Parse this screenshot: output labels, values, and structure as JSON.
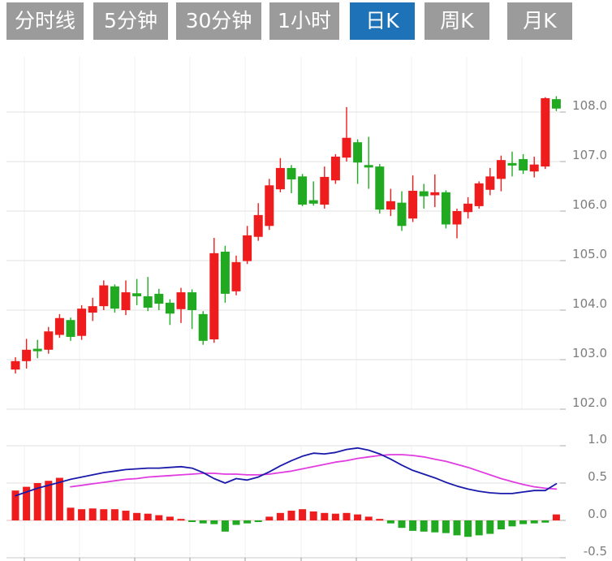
{
  "tabbar": {
    "tabs": [
      {
        "label": "分时线",
        "active": false
      },
      {
        "label": "5分钟",
        "active": false
      },
      {
        "label": "30分钟",
        "active": false
      },
      {
        "label": "1小时",
        "active": false
      },
      {
        "label": "日K",
        "active": true
      },
      {
        "label": "周K",
        "active": false
      },
      {
        "label": "月K",
        "active": false
      }
    ]
  },
  "colors": {
    "tab_bg": "#9b9b9b",
    "tab_active_bg": "#1e73b8",
    "tab_text": "#ffffff",
    "candle_up": "#ee1c1c",
    "candle_down": "#21aa21",
    "dif_line": "#1a1aaa",
    "dea_line": "#e03ce0",
    "grid": "#e2e2e2",
    "zero_line": "#e4bcbc",
    "axis_line": "#c8c8c8",
    "tick": "#aaaaaa",
    "axis_text": "#7d7d7d"
  },
  "chart_data": {
    "type": "candlestick",
    "panes": [
      "price",
      "macd-indicator"
    ],
    "convention": "red = close>=open (up), green = close<open (down)",
    "price_axis": {
      "labels": [
        "108.0",
        "107.0",
        "106.0",
        "105.0",
        "104.0",
        "103.0",
        "102.0"
      ],
      "values": [
        108.0,
        107.0,
        106.0,
        105.0,
        104.0,
        103.0,
        102.0
      ],
      "range": [
        101.8,
        108.6
      ]
    },
    "macd_axis": {
      "labels": [
        "1.0",
        "0.5",
        "0.0",
        "-0.5"
      ],
      "values": [
        1.0,
        0.5,
        0.0,
        -0.5
      ],
      "range": [
        -0.5,
        1.0
      ]
    },
    "candles": {
      "open": [
        102.8,
        102.97,
        103.22,
        103.2,
        103.5,
        103.8,
        103.48,
        103.95,
        104.08,
        104.48,
        104.0,
        104.34,
        104.28,
        104.33,
        104.15,
        104.02,
        104.36,
        103.92,
        103.41,
        105.18,
        104.38,
        104.99,
        105.48,
        105.7,
        106.44,
        106.87,
        106.7,
        106.22,
        106.13,
        106.62,
        107.08,
        107.39,
        106.93,
        106.9,
        106.03,
        106.17,
        105.85,
        106.4,
        106.32,
        106.38,
        105.73,
        105.98,
        106.1,
        106.43,
        106.65,
        106.97,
        107.05,
        106.8,
        106.9,
        108.26
      ],
      "close": [
        102.97,
        103.2,
        103.17,
        103.57,
        103.84,
        103.46,
        104.03,
        104.08,
        104.5,
        104.03,
        104.36,
        104.28,
        104.05,
        104.13,
        103.93,
        104.36,
        104.0,
        103.38,
        105.15,
        104.33,
        104.97,
        105.51,
        105.92,
        106.52,
        106.87,
        106.64,
        106.13,
        106.15,
        106.69,
        107.1,
        107.48,
        106.98,
        106.88,
        106.03,
        106.2,
        105.7,
        106.41,
        106.3,
        106.38,
        105.73,
        106.0,
        106.15,
        106.56,
        106.7,
        107.03,
        106.92,
        106.82,
        106.94,
        108.28,
        108.07
      ],
      "high": [
        103.05,
        103.42,
        103.4,
        103.66,
        103.92,
        103.85,
        104.1,
        104.25,
        104.6,
        104.52,
        104.6,
        104.63,
        104.67,
        104.43,
        104.22,
        104.45,
        104.42,
        103.98,
        105.46,
        105.3,
        105.1,
        105.7,
        106.16,
        106.65,
        107.07,
        106.93,
        106.75,
        106.6,
        106.9,
        107.15,
        108.1,
        107.45,
        107.5,
        106.95,
        106.45,
        106.4,
        106.72,
        106.55,
        106.74,
        106.42,
        106.05,
        106.28,
        106.6,
        106.87,
        107.12,
        107.2,
        107.15,
        107.1,
        108.3,
        108.32
      ],
      "low": [
        102.72,
        102.82,
        103.03,
        103.12,
        103.44,
        103.38,
        103.4,
        103.78,
        104.0,
        103.95,
        103.9,
        104.1,
        103.98,
        104.0,
        103.7,
        103.74,
        103.62,
        103.3,
        103.34,
        104.15,
        104.3,
        104.93,
        105.4,
        105.62,
        106.38,
        106.36,
        106.1,
        106.11,
        106.05,
        106.55,
        107.0,
        106.55,
        106.45,
        105.95,
        105.9,
        105.6,
        105.78,
        106.05,
        106.08,
        105.65,
        105.45,
        105.85,
        106.05,
        106.32,
        106.4,
        106.7,
        106.75,
        106.68,
        106.85,
        108.02
      ]
    },
    "macd": {
      "histogram": [
        0.4,
        0.45,
        0.5,
        0.53,
        0.57,
        0.17,
        0.15,
        0.16,
        0.15,
        0.15,
        0.13,
        0.1,
        0.09,
        0.07,
        0.05,
        0.02,
        -0.02,
        -0.04,
        -0.05,
        -0.15,
        -0.06,
        -0.04,
        -0.02,
        0.05,
        0.1,
        0.13,
        0.15,
        0.12,
        0.1,
        0.09,
        0.1,
        0.08,
        0.05,
        0.02,
        -0.04,
        -0.1,
        -0.14,
        -0.15,
        -0.16,
        -0.17,
        -0.2,
        -0.22,
        -0.2,
        -0.18,
        -0.12,
        -0.08,
        -0.05,
        -0.04,
        -0.03,
        0.08
      ],
      "dif": [
        0.33,
        0.38,
        0.43,
        0.47,
        0.51,
        0.55,
        0.58,
        0.61,
        0.64,
        0.66,
        0.68,
        0.69,
        0.7,
        0.7,
        0.71,
        0.72,
        0.7,
        0.64,
        0.56,
        0.5,
        0.56,
        0.54,
        0.58,
        0.65,
        0.73,
        0.8,
        0.86,
        0.9,
        0.89,
        0.91,
        0.95,
        0.97,
        0.94,
        0.89,
        0.82,
        0.74,
        0.67,
        0.62,
        0.57,
        0.51,
        0.46,
        0.42,
        0.39,
        0.37,
        0.36,
        0.36,
        0.38,
        0.4,
        0.4,
        0.49
      ],
      "dea": [
        null,
        null,
        null,
        null,
        null,
        0.45,
        0.47,
        0.49,
        0.51,
        0.53,
        0.55,
        0.56,
        0.58,
        0.59,
        0.6,
        0.61,
        0.62,
        0.63,
        0.63,
        0.62,
        0.62,
        0.61,
        0.61,
        0.62,
        0.64,
        0.66,
        0.69,
        0.72,
        0.75,
        0.78,
        0.8,
        0.83,
        0.85,
        0.87,
        0.88,
        0.88,
        0.87,
        0.85,
        0.82,
        0.79,
        0.75,
        0.71,
        0.66,
        0.61,
        0.56,
        0.52,
        0.48,
        0.45,
        0.43,
        0.42
      ]
    }
  }
}
